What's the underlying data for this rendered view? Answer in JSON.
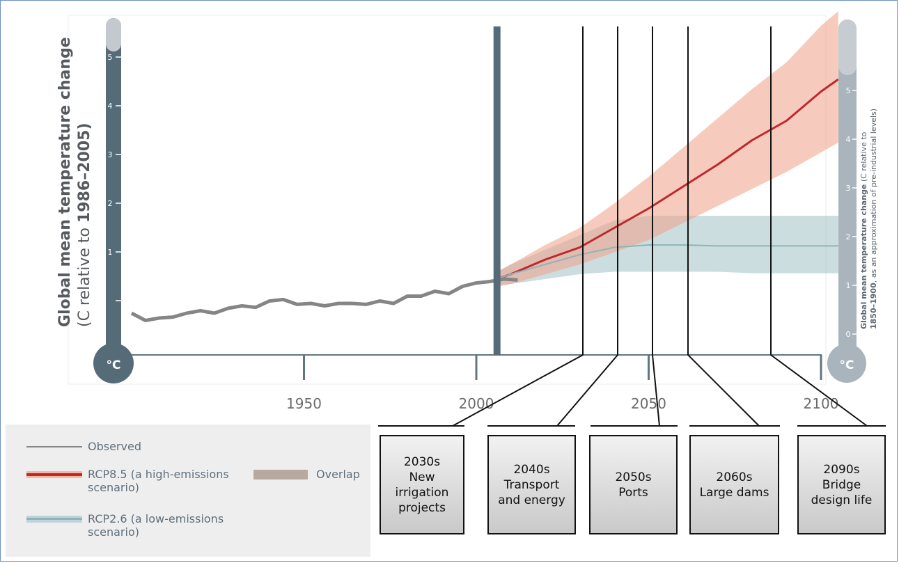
{
  "chart_data": {
    "type": "line",
    "x_ticks": [
      1950,
      2000,
      2050,
      2100
    ],
    "xlim": [
      1900,
      2105
    ],
    "left_axis": {
      "title_bold": "Global mean temperature change",
      "title_normal_prefix": "(C relative to ",
      "title_bold_suffix": "1986–2005)",
      "ticks": [
        "1",
        "2",
        "3",
        "4",
        "5"
      ],
      "unit": "°C"
    },
    "right_axis": {
      "title_bold": "Global mean temperature change",
      "title_normal": " (C relative to",
      "title2_bold": "1850–1900",
      "title2_normal": ", as an approximation of pre-industrial levels)",
      "ticks": [
        "0",
        "1",
        "2",
        "3",
        "4",
        "5"
      ],
      "unit": "°C"
    },
    "series": [
      {
        "name": "Observed",
        "color": "#858585",
        "x": [
          1900,
          1904,
          1908,
          1912,
          1916,
          1920,
          1924,
          1928,
          1932,
          1936,
          1940,
          1944,
          1948,
          1952,
          1956,
          1960,
          1964,
          1968,
          1972,
          1976,
          1980,
          1984,
          1988,
          1992,
          1996,
          2000,
          2004,
          2008,
          2012
        ],
        "y": [
          -0.4,
          -0.55,
          -0.5,
          -0.48,
          -0.4,
          -0.35,
          -0.4,
          -0.3,
          -0.25,
          -0.28,
          -0.15,
          -0.12,
          -0.22,
          -0.2,
          -0.25,
          -0.2,
          -0.2,
          -0.22,
          -0.15,
          -0.2,
          -0.05,
          -0.05,
          0.05,
          0.0,
          0.15,
          0.22,
          0.25,
          0.3,
          0.28
        ]
      },
      {
        "name": "RCP8.5 (a high-emissions scenario)",
        "color": "#c0272d",
        "x": [
          2006,
          2010,
          2020,
          2030,
          2040,
          2050,
          2060,
          2070,
          2080,
          2090,
          2100,
          2105
        ],
        "y": [
          0.3,
          0.4,
          0.7,
          0.95,
          1.35,
          1.75,
          2.2,
          2.65,
          3.15,
          3.55,
          4.15,
          4.4
        ],
        "y_low": [
          0.15,
          0.2,
          0.4,
          0.6,
          0.85,
          1.1,
          1.45,
          1.8,
          2.15,
          2.5,
          2.9,
          3.1
        ],
        "y_high": [
          0.45,
          0.6,
          1.0,
          1.35,
          1.85,
          2.4,
          3.0,
          3.6,
          4.2,
          4.75,
          5.5,
          5.8
        ]
      },
      {
        "name": "RCP2.6 (a low-emissions scenario)",
        "color": "#8fb4b8",
        "x": [
          2006,
          2010,
          2020,
          2030,
          2040,
          2050,
          2060,
          2070,
          2080,
          2090,
          2100,
          2105
        ],
        "y": [
          0.3,
          0.4,
          0.6,
          0.8,
          0.95,
          1.0,
          1.0,
          0.98,
          0.98,
          0.98,
          0.98,
          0.98
        ],
        "y_low": [
          0.15,
          0.2,
          0.3,
          0.4,
          0.45,
          0.45,
          0.45,
          0.45,
          0.42,
          0.42,
          0.42,
          0.42
        ],
        "y_high": [
          0.45,
          0.6,
          0.9,
          1.2,
          1.5,
          1.6,
          1.6,
          1.6,
          1.6,
          1.6,
          1.6,
          1.6
        ]
      }
    ],
    "overlap_label": "Overlap",
    "overlap_color": "#b8a99f",
    "present_marker_year": 2006
  },
  "legend": {
    "observed": "Observed",
    "rcp85": "RCP8.5 (a high-emissions\nscenario)",
    "rcp26": "RCP2.6 (a low-emissions\nscenario)",
    "overlap": "Overlap"
  },
  "milestones": [
    {
      "year": 2030,
      "label": "2030s\nNew\nirrigation\nprojects"
    },
    {
      "year": 2040,
      "label": "2040s\nTransport\nand energy"
    },
    {
      "year": 2050,
      "label": "2050s\nPorts"
    },
    {
      "year": 2060,
      "label": "2060s\nLarge dams"
    },
    {
      "year": 2090,
      "label": "2090s\nBridge\ndesign life"
    }
  ]
}
